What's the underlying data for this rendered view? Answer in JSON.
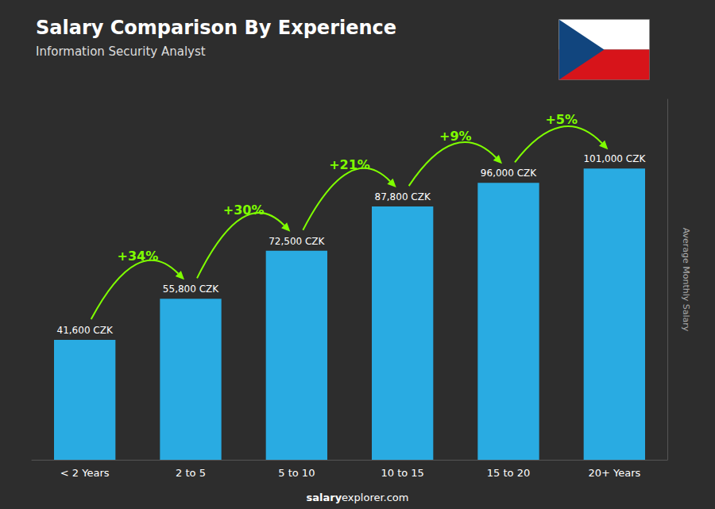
{
  "chart_data": {
    "type": "bar",
    "title": "Salary Comparison By Experience",
    "subtitle": "Information Security Analyst",
    "ylabel": "Average Monthly Salary",
    "categories": [
      "< 2 Years",
      "2 to 5",
      "5 to 10",
      "10 to 15",
      "15 to 20",
      "20+ Years"
    ],
    "values": [
      41600,
      55800,
      72500,
      87800,
      96000,
      101000
    ],
    "value_labels": [
      "41,600 CZK",
      "55,800 CZK",
      "72,500 CZK",
      "87,800 CZK",
      "96,000 CZK",
      "101,000 CZK"
    ],
    "data_labels": true,
    "annotations": [
      "+34%",
      "+30%",
      "+21%",
      "+9%",
      "+5%"
    ],
    "footer": [
      "salary",
      "explorer.com"
    ],
    "color": "#29abe2",
    "ylim": [
      0,
      125000
    ],
    "tick_labels": "x",
    "grid": false
  }
}
